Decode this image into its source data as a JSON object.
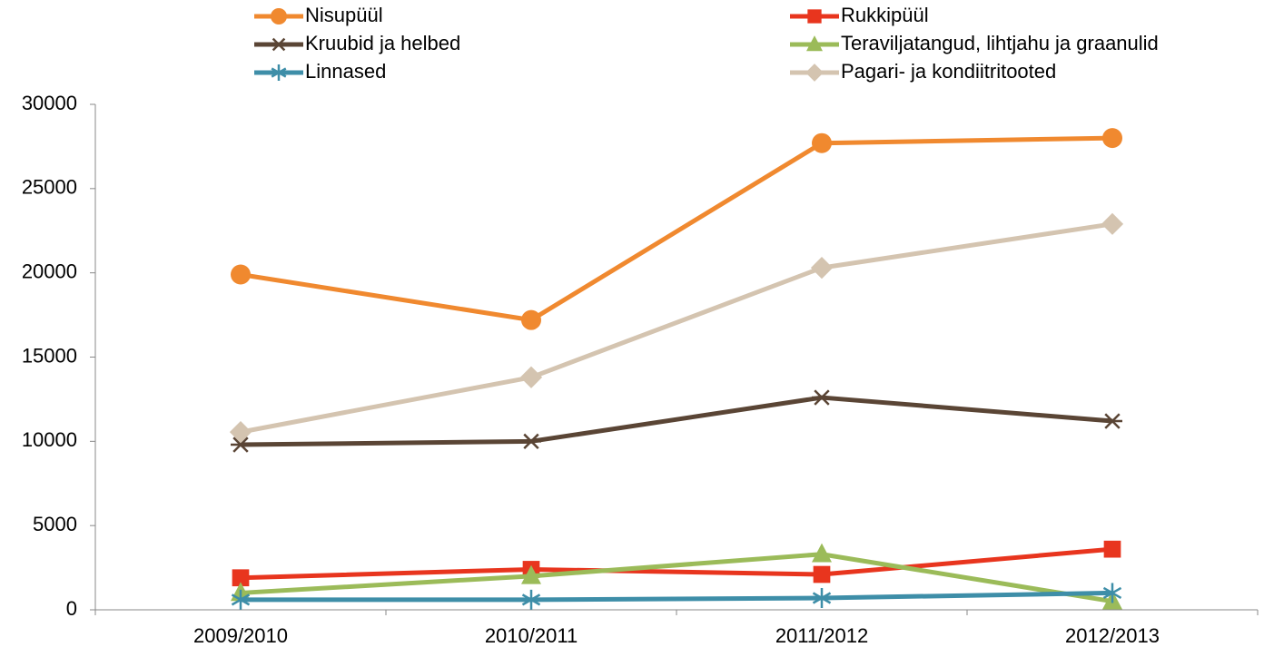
{
  "chart_data": {
    "type": "line",
    "categories": [
      "2009/2010",
      "2010/2011",
      "2011/2012",
      "2012/2013"
    ],
    "series": [
      {
        "name": "Nisupüül",
        "color": "#f0892f",
        "marker": "circle",
        "values": [
          19900,
          17200,
          27700,
          28000
        ]
      },
      {
        "name": "Rukkipüül",
        "color": "#e8351e",
        "marker": "square",
        "values": [
          1900,
          2400,
          2100,
          3600
        ]
      },
      {
        "name": "Kruubid ja helbed",
        "color": "#5a4535",
        "marker": "x-star",
        "values": [
          9800,
          10000,
          12600,
          11200
        ]
      },
      {
        "name": "Teraviljatangud, lihtjahu ja graanulid",
        "color": "#9bbb59",
        "marker": "triangle",
        "values": [
          1000,
          2000,
          3300,
          500
        ]
      },
      {
        "name": "Linnased",
        "color": "#3e8ea8",
        "marker": "asterisk",
        "values": [
          600,
          600,
          700,
          1000
        ]
      },
      {
        "name": "Pagari- ja kondiitritooted",
        "color": "#d4c4b0",
        "marker": "diamond",
        "values": [
          10550,
          13800,
          20300,
          22900
        ]
      }
    ],
    "ylim": [
      0,
      30000
    ],
    "yticks": [
      0,
      5000,
      10000,
      15000,
      20000,
      25000,
      30000
    ],
    "grid": false
  }
}
